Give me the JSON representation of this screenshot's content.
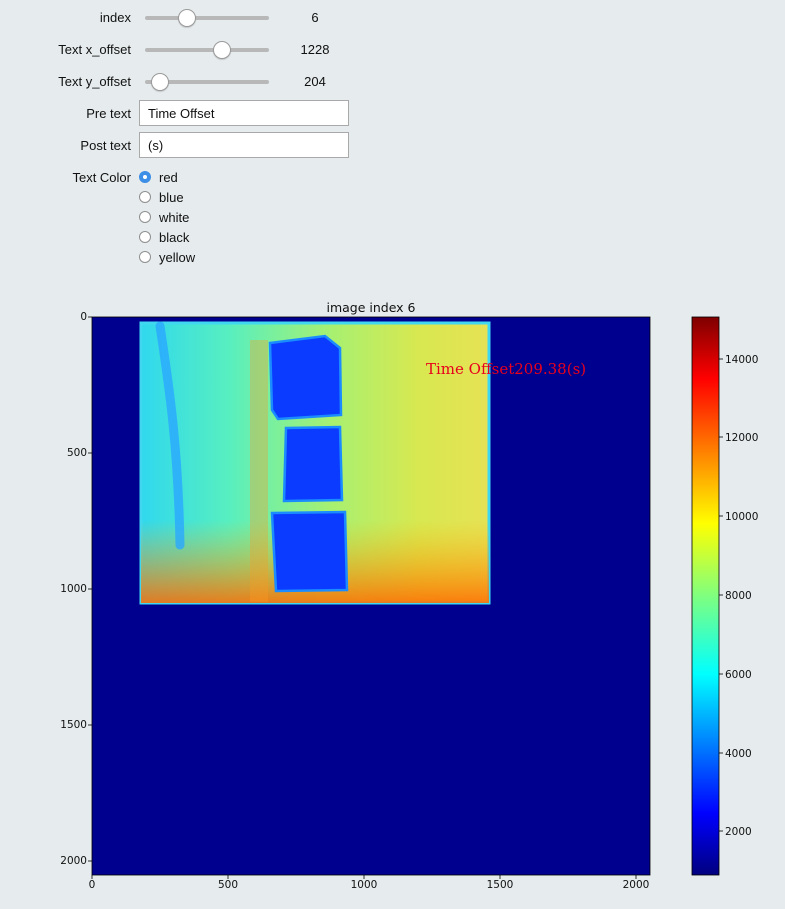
{
  "controls": {
    "index": {
      "label": "index",
      "value": "6",
      "fraction": 0.33
    },
    "x_offset": {
      "label": "Text x_offset",
      "value": "1228",
      "fraction": 0.61
    },
    "y_offset": {
      "label": "Text y_offset",
      "value": "204",
      "fraction": 0.11
    },
    "pre_text": {
      "label": "Pre text",
      "value": "Time Offset"
    },
    "post_text": {
      "label": "Post text",
      "value": "(s)"
    },
    "text_color": {
      "label": "Text Color",
      "options": [
        "red",
        "blue",
        "white",
        "black",
        "yellow"
      ],
      "selected": "red"
    }
  },
  "plot": {
    "title": "image index 6",
    "overlay_text": "Time Offset209.38(s)",
    "overlay_color": "#e8001c",
    "x_ticks": [
      "0",
      "500",
      "1000",
      "1500",
      "2000"
    ],
    "y_ticks": [
      "0",
      "500",
      "1000",
      "1500",
      "2000"
    ],
    "colorbar_ticks": [
      "14000",
      "12000",
      "10000",
      "8000",
      "6000",
      "4000",
      "2000"
    ],
    "colormap": "jet"
  },
  "chart_data": {
    "type": "heatmap",
    "title": "image index 6",
    "x_range": [
      0,
      2048
    ],
    "y_range": [
      2048,
      0
    ],
    "x_ticks": [
      0,
      500,
      1000,
      1500,
      2000
    ],
    "y_ticks": [
      0,
      500,
      1000,
      1500,
      2000
    ],
    "colorbar": {
      "min": 900,
      "max": 15200,
      "ticks": [
        2000,
        4000,
        6000,
        8000,
        10000,
        12000,
        14000
      ]
    },
    "annotations": [
      {
        "text": "Time Offset209.38(s)",
        "x": 1228,
        "y": 204,
        "color": "red"
      }
    ]
  }
}
